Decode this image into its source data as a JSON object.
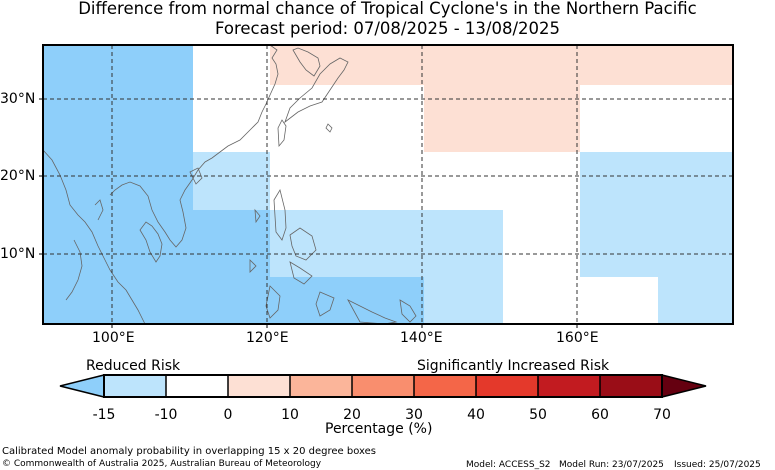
{
  "title_line1": "Difference from normal chance of Tropical Cyclone's in the Northern Pacific",
  "title_line2": "Forecast period: 07/08/2025 - 13/08/2025",
  "lon_labels": [
    "100°E",
    "120°E",
    "140°E",
    "160°E"
  ],
  "lat_labels": [
    "30°N",
    "20°N",
    "10°N"
  ],
  "legend": {
    "reduced_label": "Reduced Risk",
    "increased_label": "Significantly Increased Risk",
    "tick_labels": [
      "-15",
      "-10",
      "0",
      "10",
      "20",
      "30",
      "40",
      "50",
      "60",
      "70"
    ],
    "units": "Percentage (%)",
    "colors": [
      "#8ecffa",
      "#bde4fc",
      "#ffffff",
      "#fde0d4",
      "#fbb59a",
      "#f98e6e",
      "#f46648",
      "#e4392b",
      "#c21b20",
      "#9a0d17",
      "#650010"
    ]
  },
  "colors": {
    "reduced_strong": "#8ecffa",
    "reduced": "#bde4fc",
    "neutral": "#ffffff",
    "increased_slight": "#fde0d4",
    "coastline": "#666666",
    "grid": "#333333"
  },
  "footer": {
    "description": "Calibrated Model anomaly probability in overlapping 15 x 20 degree boxes",
    "copyright": "© Commonwealth of Australia 2025, Australian Bureau of Meteorology",
    "model": "Model: ACCESS_S2",
    "model_run": "Model Run: 23/07/2025",
    "issued": "Issued: 25/07/2025"
  }
}
